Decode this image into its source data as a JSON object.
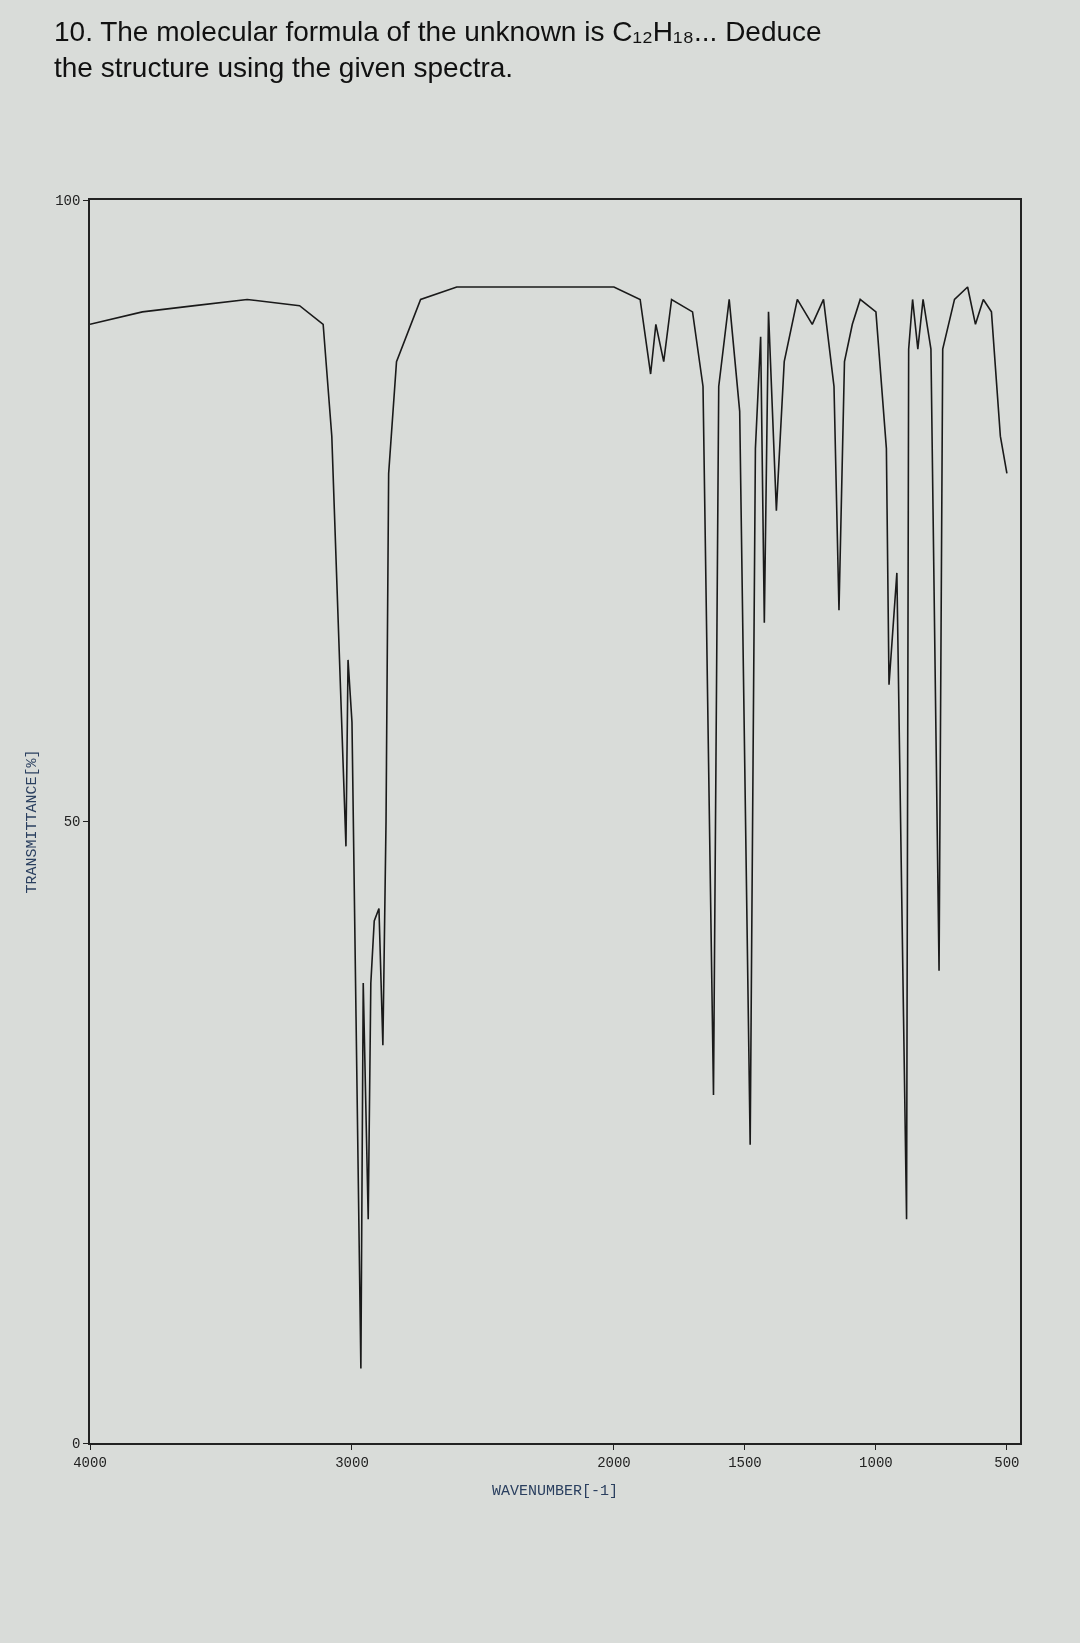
{
  "chart_data": {
    "type": "line",
    "title": "10. The molecular formula of the unknown is C₁₂H₁₈... Deduce the structure using the given spectra.",
    "xlabel": "WAVENUMBER[-1]",
    "ylabel": "TRANSMITTANCE[%]",
    "x": [
      4000,
      3800,
      3600,
      3400,
      3200,
      3110,
      3077,
      3023,
      3015,
      3000,
      2966,
      2957,
      2938,
      2928,
      2915,
      2897,
      2882,
      2870,
      2860,
      2830,
      2738,
      2600,
      2400,
      2200,
      2000,
      1900,
      1860,
      1840,
      1810,
      1780,
      1700,
      1660,
      1620,
      1600,
      1560,
      1520,
      1480,
      1460,
      1440,
      1426,
      1410,
      1380,
      1350,
      1300,
      1243,
      1200,
      1160,
      1141,
      1120,
      1090,
      1060,
      1000,
      960,
      950,
      920,
      883,
      875,
      860,
      840,
      820,
      790,
      759,
      745,
      700,
      650,
      620,
      590,
      559,
      525,
      500
    ],
    "series": [
      {
        "color": "#1a1a1a",
        "values": [
          90,
          91,
          91.5,
          92,
          91.5,
          90,
          81,
          48,
          63,
          58,
          6,
          37,
          18,
          37,
          42,
          43,
          32,
          50,
          78,
          87,
          92,
          93,
          93,
          93,
          93,
          92,
          86,
          90,
          87,
          92,
          91,
          85,
          28,
          85,
          92,
          83,
          24,
          80,
          89,
          66,
          91,
          75,
          87,
          92,
          90,
          92,
          85,
          67,
          87,
          90,
          92,
          91,
          80,
          61,
          70,
          18,
          88,
          92,
          88,
          92,
          88,
          38,
          88,
          92,
          93,
          90,
          92,
          91,
          81,
          78
        ]
      }
    ],
    "xlim": [
      4000,
      450
    ],
    "ylim": [
      0,
      100
    ],
    "xticks": [
      4000,
      3000,
      2000,
      1500,
      1000,
      500
    ],
    "yticks": [
      0,
      50,
      100
    ],
    "grid": false,
    "marker": "none",
    "line_style": "solid"
  }
}
